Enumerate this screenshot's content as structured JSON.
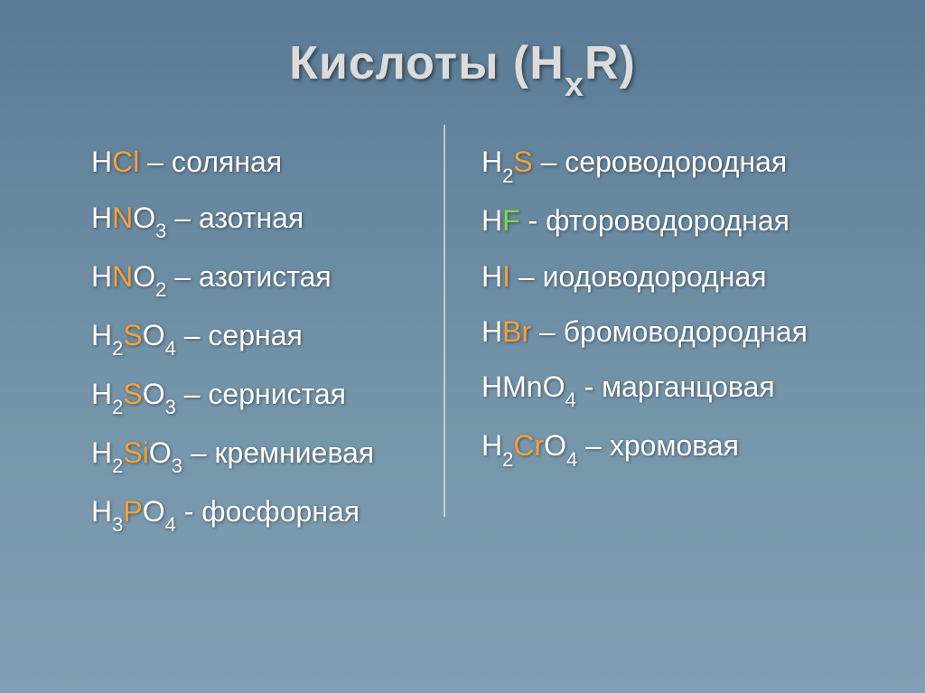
{
  "slide": {
    "title_prefix": "Кислоты (H",
    "title_sub": "x",
    "title_suffix": "R)",
    "colors": {
      "background_top": "#5a7a95",
      "background_bottom": "#82a0b5",
      "title_color": "#dcdcdc",
      "text_color": "#ffffff",
      "highlight_orange": "#f5a23a",
      "highlight_green": "#7fd84a",
      "divider_color": "rgba(255,255,255,0.55)"
    },
    "font_family": "Arial",
    "title_fontsize": 52,
    "entry_fontsize": 32
  },
  "left": [
    {
      "pre": "H",
      "hl": "Cl",
      "sub": "",
      "post": "",
      "dash": " – ",
      "name": "соляная",
      "hlclass": "hl-orange"
    },
    {
      "pre": "H",
      "hl": "N",
      "sub": "",
      "post": "O",
      "postsub": "3",
      "dash": " – ",
      "name": "азотная",
      "hlclass": "hl-orange"
    },
    {
      "pre": "H",
      "hl": "N",
      "sub": "",
      "post": "O",
      "postsub": "2",
      "dash": " – ",
      "name": "азотистая",
      "hlclass": "hl-orange"
    },
    {
      "pre": "H",
      "presub": "2",
      "hl": "S",
      "post": "O",
      "postsub": "4",
      "dash": " – ",
      "name": "серная",
      "hlclass": "hl-orange"
    },
    {
      "pre": "H",
      "presub": "2",
      "hl": "S",
      "post": "O",
      "postsub": "3",
      "dash": " – ",
      "name": "сернистая",
      "hlclass": "hl-orange"
    },
    {
      "pre": "H",
      "presub": "2",
      "hl": "Si",
      "post": "O",
      "postsub": "3",
      "dash": " – ",
      "name": "кремниевая",
      "hlclass": "hl-orange"
    },
    {
      "pre": "H",
      "presub": "3",
      "hl": "P",
      "post": "O",
      "postsub": "4",
      "dash": " - ",
      "name": "фосфорная",
      "hlclass": "hl-orange"
    }
  ],
  "right": [
    {
      "pre": "H",
      "presub": "2",
      "hl": "S",
      "post": "",
      "dash": " – ",
      "name": "сероводородная",
      "hlclass": "hl-orange"
    },
    {
      "pre": "H",
      "hl": "F",
      "post": "",
      "dash": " - ",
      "name": "фтороводородная",
      "hlclass": "hl-green"
    },
    {
      "pre": "H",
      "hl": "I",
      "post": "",
      "dash": " – ",
      "name": "иодоводородная",
      "hlclass": "hl-orange"
    },
    {
      "pre": "H",
      "hl": "Br",
      "post": "",
      "dash": " – ",
      "name": "бромоводородная",
      "hlclass": "hl-orange"
    },
    {
      "pre": "H",
      "hl": "Mn",
      "post": "O",
      "postsub": "4",
      "dash": " - ",
      "name": "марганцовая",
      "hlclass": "hl-white",
      "small": true
    },
    {
      "pre": "H",
      "presub": "2",
      "hl": "Cr",
      "post": "O",
      "postsub": "4",
      "dash": " – ",
      "name": "хромовая",
      "hlclass": "hl-orange"
    }
  ]
}
